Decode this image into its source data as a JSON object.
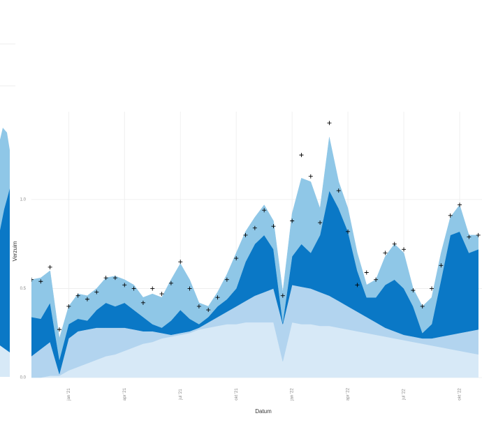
{
  "chart_data": {
    "type": "area",
    "stacked": true,
    "x_label": "Datum",
    "y_label": "Verzuim",
    "x": [
      -2,
      -1.5,
      -1,
      -0.5,
      0,
      0.5,
      1,
      1.5,
      2,
      2.5,
      3,
      3.5,
      4,
      4.5,
      5,
      5.5,
      6,
      6.5,
      7,
      7.5,
      8,
      8.5,
      9,
      9.5,
      10,
      10.5,
      11,
      11.5,
      12,
      12.5,
      13,
      13.5,
      14,
      14.5,
      15,
      15.5,
      16,
      16.5,
      17,
      17.5,
      18,
      18.5,
      19,
      19.5,
      20,
      20.5,
      21,
      21.5,
      22
    ],
    "series": [
      {
        "color": "#d7e9f7",
        "values": [
          0,
          0,
          0.01,
          0.01,
          0.04,
          0.06,
          0.08,
          0.1,
          0.12,
          0.13,
          0.15,
          0.17,
          0.19,
          0.2,
          0.22,
          0.23,
          0.24,
          0.25,
          0.27,
          0.28,
          0.29,
          0.3,
          0.3,
          0.31,
          0.31,
          0.31,
          0.31,
          0.09,
          0.31,
          0.3,
          0.3,
          0.29,
          0.29,
          0.28,
          0.27,
          0.26,
          0.25,
          0.24,
          0.23,
          0.22,
          0.21,
          0.2,
          0.19,
          0.18,
          0.17,
          0.16,
          0.15,
          0.14,
          0.13
        ]
      },
      {
        "color": "#b2d4ef",
        "values": [
          0.12,
          0.16,
          0.19,
          0.01,
          0.18,
          0.2,
          0.19,
          0.18,
          0.16,
          0.15,
          0.13,
          0.1,
          0.07,
          0.06,
          0.03,
          0.01,
          0.01,
          0.01,
          0.01,
          0.03,
          0.05,
          0.07,
          0.1,
          0.12,
          0.15,
          0.17,
          0.19,
          0.21,
          0.21,
          0.21,
          0.2,
          0.19,
          0.17,
          0.15,
          0.13,
          0.11,
          0.09,
          0.07,
          0.05,
          0.04,
          0.03,
          0.03,
          0.03,
          0.04,
          0.06,
          0.08,
          0.1,
          0.12,
          0.14
        ]
      },
      {
        "color": "#0a78c6",
        "values": [
          0.22,
          0.17,
          0.22,
          0.08,
          0.08,
          0.07,
          0.05,
          0.1,
          0.14,
          0.12,
          0.14,
          0.11,
          0.08,
          0.04,
          0.03,
          0.08,
          0.13,
          0.07,
          0.02,
          0.03,
          0.06,
          0.07,
          0.1,
          0.22,
          0.29,
          0.32,
          0.22,
          0.01,
          0.16,
          0.24,
          0.2,
          0.32,
          0.59,
          0.52,
          0.42,
          0.23,
          0.11,
          0.14,
          0.24,
          0.29,
          0.26,
          0.17,
          0.03,
          0.08,
          0.32,
          0.56,
          0.57,
          0.44,
          0.45
        ]
      },
      {
        "color": "#8fc7e7",
        "values": [
          0.21,
          0.23,
          0.18,
          0.12,
          0.1,
          0.14,
          0.14,
          0.12,
          0.14,
          0.17,
          0.13,
          0.14,
          0.11,
          0.17,
          0.17,
          0.23,
          0.26,
          0.22,
          0.12,
          0.06,
          0.08,
          0.14,
          0.2,
          0.17,
          0.15,
          0.17,
          0.16,
          0.17,
          0.24,
          0.37,
          0.4,
          0.15,
          0.3,
          0.15,
          0.13,
          0.1,
          0.07,
          0.1,
          0.16,
          0.2,
          0.2,
          0.1,
          0.15,
          0.15,
          0.15,
          0.1,
          0.15,
          0.1,
          0.08
        ]
      }
    ],
    "points": {
      "color": "#000000",
      "values": [
        0.55,
        0.54,
        0.62,
        0.27,
        0.4,
        0.46,
        0.44,
        0.48,
        0.56,
        0.56,
        0.52,
        0.5,
        0.42,
        0.5,
        0.47,
        0.53,
        0.65,
        0.5,
        0.4,
        0.38,
        0.45,
        0.55,
        0.67,
        0.8,
        0.84,
        0.94,
        0.85,
        0.46,
        0.88,
        1.25,
        1.13,
        0.87,
        1.43,
        1.05,
        0.82,
        0.52,
        0.59,
        0.55,
        0.7,
        0.75,
        0.72,
        0.49,
        0.4,
        0.5,
        0.63,
        0.91,
        0.97,
        0.79,
        0.8
      ]
    },
    "xlim": [
      -2,
      22.2
    ],
    "ylim": [
      0,
      1.47
    ],
    "xticks": [
      {
        "value": 0,
        "label": "jan '21"
      },
      {
        "value": 3,
        "label": "apr '21"
      },
      {
        "value": 6,
        "label": "jul '21"
      },
      {
        "value": 9,
        "label": "okt '21"
      },
      {
        "value": 12,
        "label": "jan '22"
      },
      {
        "value": 15,
        "label": "apr '22"
      },
      {
        "value": 18,
        "label": "jul '22"
      },
      {
        "value": 21,
        "label": "okt '22"
      }
    ],
    "yticks": [
      {
        "value": 0,
        "label": "0.0"
      },
      {
        "value": 0.5,
        "label": "0.5"
      },
      {
        "value": 1,
        "label": "1.0"
      }
    ],
    "grid": true
  }
}
